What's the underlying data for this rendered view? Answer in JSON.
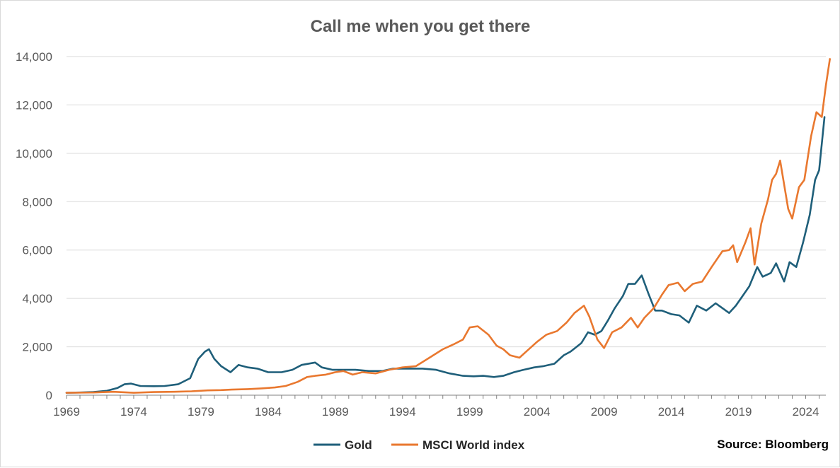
{
  "chart_data": {
    "type": "line",
    "title": "Call me when you get there",
    "xlabel": "",
    "ylabel": "",
    "xlim": [
      1969,
      2025.5
    ],
    "ylim": [
      0,
      14000
    ],
    "x_ticks": [
      1969,
      1974,
      1979,
      1984,
      1989,
      1994,
      1999,
      2004,
      2009,
      2014,
      2019,
      2024
    ],
    "x_tick_labels": [
      "1969",
      "1974",
      "1979",
      "1984",
      "1989",
      "1994",
      "1999",
      "2004",
      "2009",
      "2014",
      "2019",
      "2024"
    ],
    "y_ticks": [
      0,
      2000,
      4000,
      6000,
      8000,
      10000,
      12000,
      14000
    ],
    "y_tick_labels": [
      "0",
      "2,000",
      "4,000",
      "6,000",
      "8,000",
      "10,000",
      "12,000",
      "14,000"
    ],
    "grid": true,
    "legend_position": "bottom-center",
    "source": "Source: Bloomberg",
    "series": [
      {
        "name": "Gold",
        "color": "#1f5f7a",
        "points": [
          [
            1969,
            100
          ],
          [
            1970,
            110
          ],
          [
            1971,
            130
          ],
          [
            1972,
            180
          ],
          [
            1972.8,
            300
          ],
          [
            1973.3,
            450
          ],
          [
            1973.8,
            480
          ],
          [
            1974.5,
            380
          ],
          [
            1975.5,
            370
          ],
          [
            1976.3,
            380
          ],
          [
            1977.3,
            450
          ],
          [
            1978.2,
            700
          ],
          [
            1978.8,
            1500
          ],
          [
            1979.3,
            1800
          ],
          [
            1979.6,
            1900
          ],
          [
            1980.0,
            1500
          ],
          [
            1980.5,
            1200
          ],
          [
            1981.2,
            950
          ],
          [
            1981.8,
            1250
          ],
          [
            1982.5,
            1150
          ],
          [
            1983.2,
            1100
          ],
          [
            1984.0,
            950
          ],
          [
            1985.0,
            950
          ],
          [
            1985.8,
            1050
          ],
          [
            1986.5,
            1250
          ],
          [
            1987.5,
            1350
          ],
          [
            1988.0,
            1150
          ],
          [
            1988.8,
            1050
          ],
          [
            1989.5,
            1050
          ],
          [
            1990.5,
            1050
          ],
          [
            1991.5,
            1000
          ],
          [
            1992.5,
            1000
          ],
          [
            1993.3,
            1100
          ],
          [
            1994.5,
            1100
          ],
          [
            1995.5,
            1100
          ],
          [
            1996.5,
            1050
          ],
          [
            1997.5,
            900
          ],
          [
            1998.5,
            800
          ],
          [
            1999.3,
            780
          ],
          [
            2000.0,
            800
          ],
          [
            2000.8,
            750
          ],
          [
            2001.5,
            800
          ],
          [
            2002.3,
            950
          ],
          [
            2003.0,
            1050
          ],
          [
            2003.8,
            1150
          ],
          [
            2004.5,
            1200
          ],
          [
            2005.3,
            1300
          ],
          [
            2006.0,
            1650
          ],
          [
            2006.5,
            1800
          ],
          [
            2007.3,
            2150
          ],
          [
            2007.8,
            2600
          ],
          [
            2008.3,
            2500
          ],
          [
            2008.8,
            2650
          ],
          [
            2009.3,
            3100
          ],
          [
            2009.8,
            3600
          ],
          [
            2010.4,
            4100
          ],
          [
            2010.8,
            4600
          ],
          [
            2011.3,
            4600
          ],
          [
            2011.8,
            4950
          ],
          [
            2012.3,
            4200
          ],
          [
            2012.8,
            3500
          ],
          [
            2013.3,
            3500
          ],
          [
            2014.0,
            3350
          ],
          [
            2014.6,
            3300
          ],
          [
            2015.3,
            3000
          ],
          [
            2015.9,
            3700
          ],
          [
            2016.6,
            3500
          ],
          [
            2017.3,
            3800
          ],
          [
            2018.3,
            3400
          ],
          [
            2018.8,
            3700
          ],
          [
            2019.3,
            4100
          ],
          [
            2019.8,
            4500
          ],
          [
            2020.4,
            5300
          ],
          [
            2020.8,
            4900
          ],
          [
            2021.4,
            5050
          ],
          [
            2021.8,
            5450
          ],
          [
            2022.4,
            4700
          ],
          [
            2022.8,
            5500
          ],
          [
            2023.3,
            5300
          ],
          [
            2023.8,
            6300
          ],
          [
            2024.3,
            7450
          ],
          [
            2024.7,
            8900
          ],
          [
            2025.0,
            9300
          ],
          [
            2025.4,
            11500
          ]
        ]
      },
      {
        "name": "MSCI World index",
        "color": "#e9782f",
        "points": [
          [
            1969,
            100
          ],
          [
            1971,
            110
          ],
          [
            1972.5,
            140
          ],
          [
            1974.0,
            100
          ],
          [
            1975.5,
            130
          ],
          [
            1977.0,
            140
          ],
          [
            1978.3,
            160
          ],
          [
            1979.5,
            200
          ],
          [
            1980.5,
            210
          ],
          [
            1981.3,
            230
          ],
          [
            1982.5,
            250
          ],
          [
            1983.5,
            280
          ],
          [
            1984.5,
            320
          ],
          [
            1985.3,
            380
          ],
          [
            1986.2,
            550
          ],
          [
            1986.9,
            750
          ],
          [
            1987.5,
            800
          ],
          [
            1988.3,
            850
          ],
          [
            1989.0,
            950
          ],
          [
            1989.6,
            1000
          ],
          [
            1990.3,
            850
          ],
          [
            1991.0,
            950
          ],
          [
            1992.0,
            900
          ],
          [
            1993.0,
            1050
          ],
          [
            1994.0,
            1150
          ],
          [
            1995.0,
            1200
          ],
          [
            1996.0,
            1550
          ],
          [
            1997.0,
            1900
          ],
          [
            1997.8,
            2100
          ],
          [
            1998.5,
            2300
          ],
          [
            1999.0,
            2800
          ],
          [
            1999.6,
            2850
          ],
          [
            2000.4,
            2500
          ],
          [
            2001.0,
            2050
          ],
          [
            2001.5,
            1900
          ],
          [
            2002.0,
            1650
          ],
          [
            2002.7,
            1550
          ],
          [
            2003.3,
            1850
          ],
          [
            2004.0,
            2200
          ],
          [
            2004.7,
            2500
          ],
          [
            2005.5,
            2650
          ],
          [
            2006.2,
            3000
          ],
          [
            2006.8,
            3400
          ],
          [
            2007.5,
            3700
          ],
          [
            2007.9,
            3250
          ],
          [
            2008.5,
            2300
          ],
          [
            2009.0,
            1950
          ],
          [
            2009.6,
            2600
          ],
          [
            2010.3,
            2800
          ],
          [
            2011.0,
            3200
          ],
          [
            2011.5,
            2800
          ],
          [
            2012.0,
            3200
          ],
          [
            2012.7,
            3600
          ],
          [
            2013.3,
            4150
          ],
          [
            2013.8,
            4550
          ],
          [
            2014.5,
            4650
          ],
          [
            2015.0,
            4300
          ],
          [
            2015.6,
            4600
          ],
          [
            2016.3,
            4700
          ],
          [
            2017.0,
            5300
          ],
          [
            2017.8,
            5950
          ],
          [
            2018.3,
            6000
          ],
          [
            2018.6,
            6200
          ],
          [
            2018.9,
            5500
          ],
          [
            2019.5,
            6300
          ],
          [
            2019.9,
            6900
          ],
          [
            2020.2,
            5400
          ],
          [
            2020.7,
            7100
          ],
          [
            2021.2,
            8100
          ],
          [
            2021.5,
            8900
          ],
          [
            2021.8,
            9150
          ],
          [
            2022.1,
            9700
          ],
          [
            2022.4,
            8700
          ],
          [
            2022.7,
            7700
          ],
          [
            2023.0,
            7300
          ],
          [
            2023.5,
            8600
          ],
          [
            2023.9,
            8900
          ],
          [
            2024.4,
            10700
          ],
          [
            2024.8,
            11700
          ],
          [
            2025.2,
            11500
          ],
          [
            2025.5,
            12800
          ],
          [
            2025.8,
            13900
          ]
        ]
      }
    ]
  }
}
